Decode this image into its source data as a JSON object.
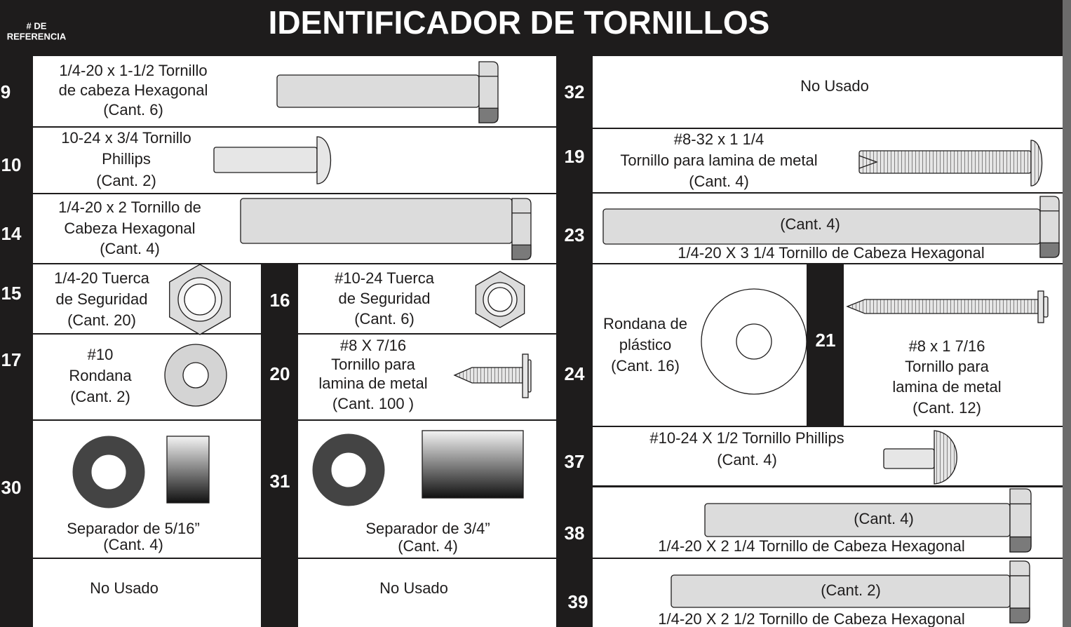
{
  "header": {
    "ref_label_lines": [
      "# DE",
      "REFERENCIA"
    ],
    "title": "IDENTIFICADOR DE TORNILLOS"
  },
  "parts": [
    {
      "number": "9",
      "lines": [
        "1/4-20 x 1-1/2 Tornillo",
        "de cabeza Hexagonal",
        "(Cant. 6)"
      ]
    },
    {
      "number": "10",
      "lines": [
        "10-24 x 3/4 Tornillo",
        "Phillips",
        "(Cant. 2)"
      ]
    },
    {
      "number": "14",
      "lines": [
        "1/4-20 x 2 Tornillo de",
        "Cabeza Hexagonal",
        "(Cant. 4)"
      ]
    },
    {
      "number": "15",
      "lines": [
        "1/4-20 Tuerca",
        "de Seguridad",
        "(Cant. 20)"
      ]
    },
    {
      "number": "16",
      "lines": [
        "#10-24 Tuerca",
        "de Seguridad",
        "(Cant. 6)"
      ]
    },
    {
      "number": "17",
      "lines": [
        "#10",
        "Rondana",
        "(Cant. 2)"
      ]
    },
    {
      "number": "20",
      "lines": [
        "#8  X  7/16",
        "Tornillo para",
        "lamina de metal",
        "(Cant. 100 )"
      ]
    },
    {
      "number": "30",
      "lines": [
        "Separador de 5/16”",
        "(Cant. 4)"
      ]
    },
    {
      "number": "31",
      "lines": [
        "Separador de 3/4”",
        "(Cant. 4)"
      ]
    },
    {
      "lines": [
        "No Usado"
      ]
    },
    {
      "lines": [
        "No Usado"
      ]
    },
    {
      "number": "32",
      "lines": [
        "No Usado"
      ]
    },
    {
      "number": "19",
      "lines": [
        "#8-32 x 1 1/4",
        "Tornillo para lamina de metal",
        "(Cant. 4)"
      ]
    },
    {
      "number": "23",
      "lines": [
        "(Cant. 4)",
        "1/4-20 X 3 1/4 Tornillo de Cabeza Hexagonal"
      ]
    },
    {
      "number": "24",
      "lines": [
        "Rondana de",
        "plástico",
        "(Cant. 16)"
      ]
    },
    {
      "number": "21",
      "lines": [
        "#8 x 1 7/16",
        "Tornillo para",
        "lamina de metal",
        "(Cant. 12)"
      ]
    },
    {
      "number": "37",
      "lines": [
        "#10-24 X 1/2 Tornillo Phillips",
        "(Cant. 4)"
      ]
    },
    {
      "number": "38",
      "lines": [
        "(Cant. 4)",
        "1/4-20 X 2 1/4 Tornillo de Cabeza Hexagonal"
      ]
    },
    {
      "number": "39",
      "lines": [
        "(Cant. 2)",
        "1/4-20 X 2 1/2 Tornillo de Cabeza Hexagonal"
      ]
    }
  ]
}
